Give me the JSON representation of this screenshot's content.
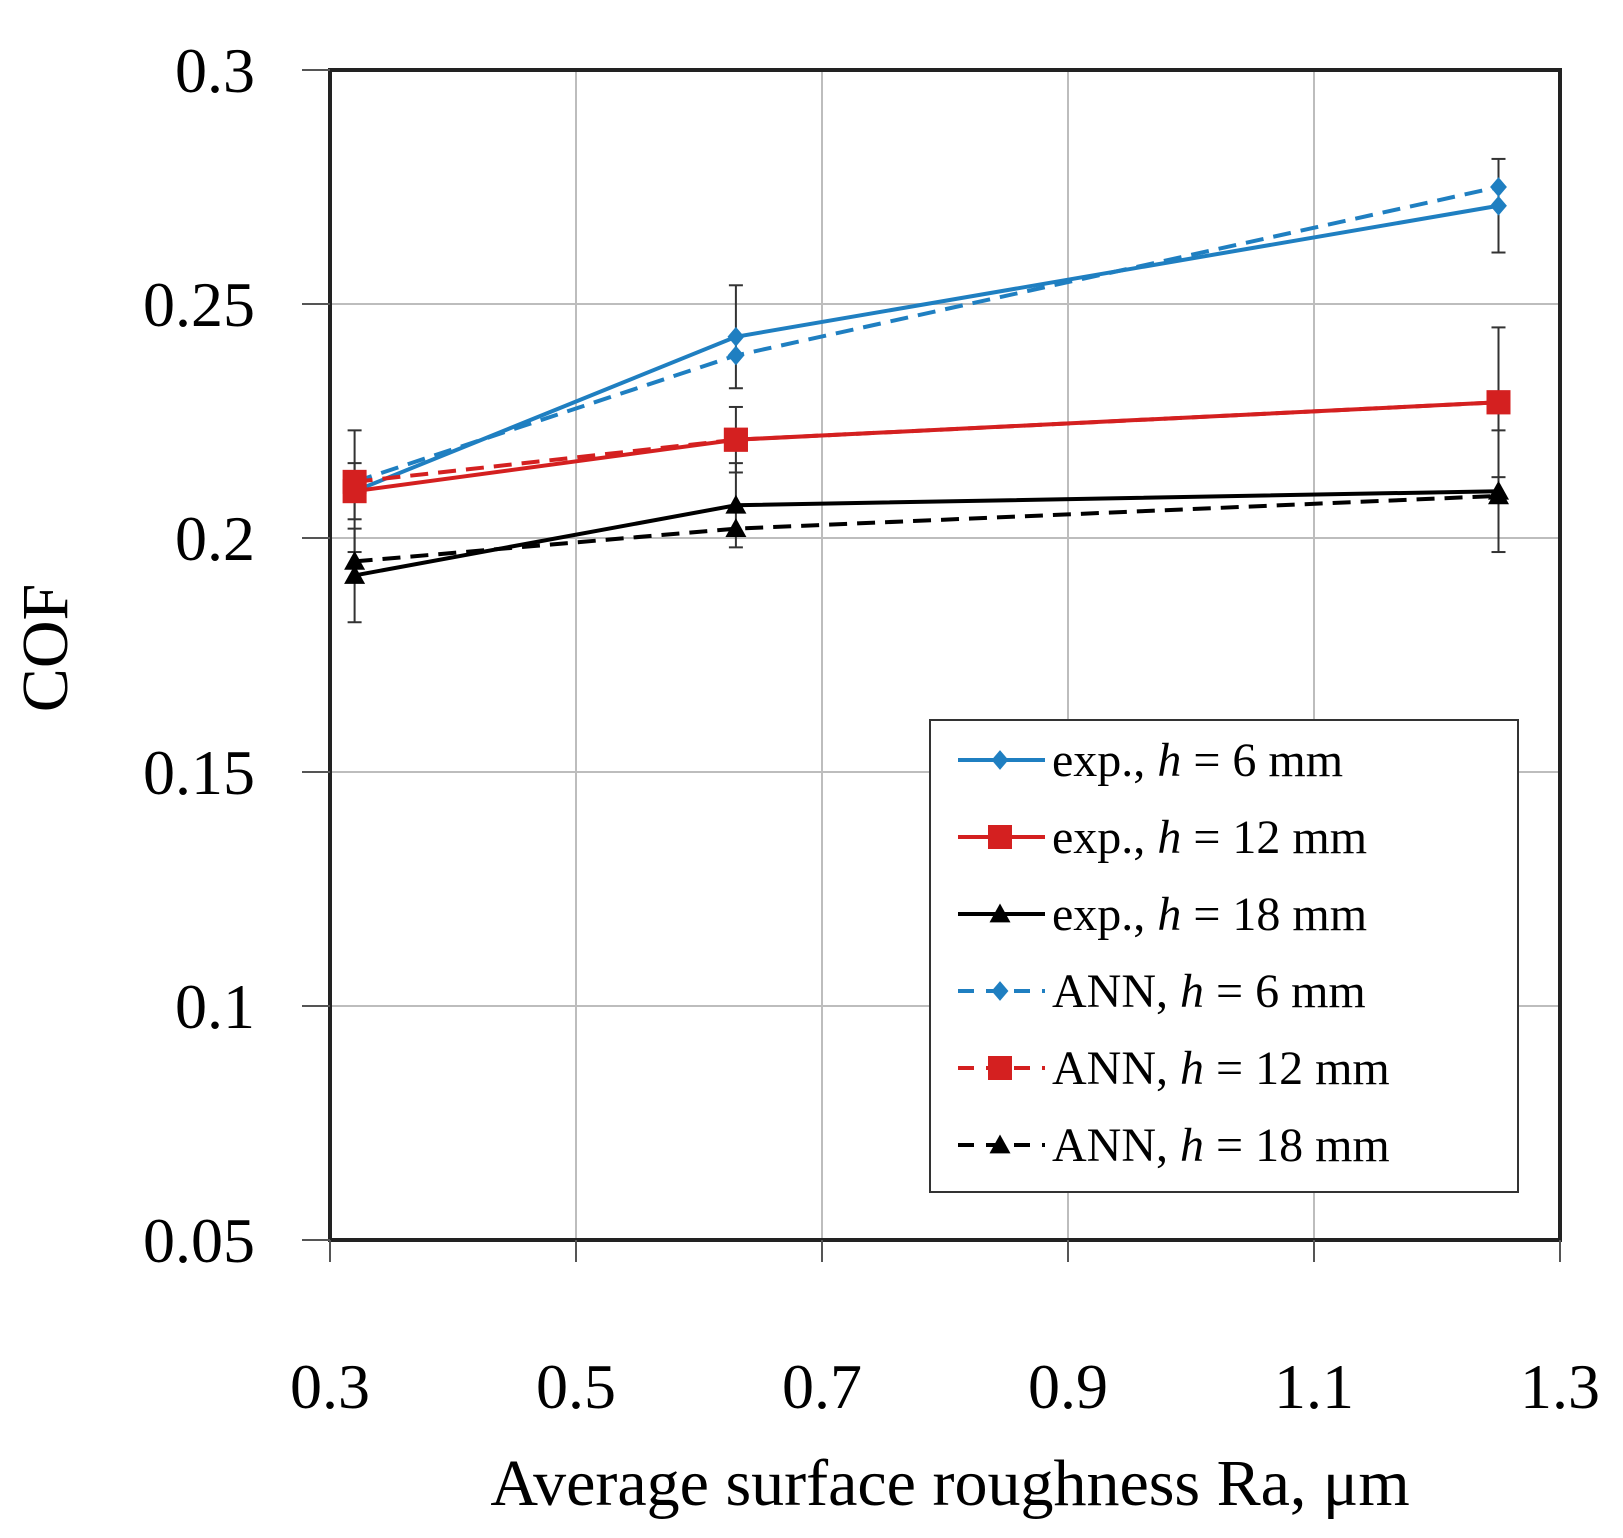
{
  "chart_data": {
    "type": "line",
    "title": "",
    "xlabel": "Average surface roughness Ra, μm",
    "ylabel": "COF",
    "xlim": [
      0.3,
      1.3
    ],
    "ylim": [
      0.05,
      0.3
    ],
    "xticks": [
      0.3,
      0.5,
      0.7,
      0.9,
      1.1,
      1.3
    ],
    "xtick_labels": [
      "0.3",
      "0.5",
      "0.7",
      "0.9",
      "1.1",
      "1.3"
    ],
    "yticks": [
      0.05,
      0.1,
      0.15,
      0.2,
      0.25,
      0.3
    ],
    "ytick_labels": [
      "0.05",
      "0.1",
      "0.15",
      "0.2",
      "0.25",
      "0.3"
    ],
    "grid": true,
    "legend_position": "lower-right",
    "x": [
      0.32,
      0.63,
      1.25
    ],
    "series": [
      {
        "name": "exp., h = 6 mm",
        "prefix": "exp., ",
        "mm": "6 mm",
        "values": [
          0.21,
          0.243,
          0.271
        ],
        "err": [
          0.013,
          0.011,
          0.01
        ],
        "color": "#1f7fc1",
        "dash": "solid",
        "marker": "diamond"
      },
      {
        "name": "exp., h = 12 mm",
        "prefix": "exp., ",
        "mm": "12 mm",
        "values": [
          0.21,
          0.221,
          0.229
        ],
        "err": [
          0.006,
          0.007,
          0.016
        ],
        "color": "#d42020",
        "dash": "solid",
        "marker": "square"
      },
      {
        "name": "exp., h = 18 mm",
        "prefix": "exp., ",
        "mm": "18 mm",
        "values": [
          0.192,
          0.207,
          0.21
        ],
        "err": [
          0.01,
          0.009,
          0.013
        ],
        "color": "#000000",
        "dash": "solid",
        "marker": "triangle"
      },
      {
        "name": "ANN, h = 6 mm",
        "prefix": "ANN, ",
        "mm": "6 mm",
        "values": [
          0.212,
          0.239,
          0.275
        ],
        "err": [],
        "color": "#1f7fc1",
        "dash": "dashed",
        "marker": "diamond"
      },
      {
        "name": "ANN, h = 12 mm",
        "prefix": "ANN, ",
        "mm": "12 mm",
        "values": [
          0.212,
          0.221,
          0.229
        ],
        "err": [],
        "color": "#d42020",
        "dash": "dashed",
        "marker": "square"
      },
      {
        "name": "ANN, h = 18 mm",
        "prefix": "ANN, ",
        "mm": "18 mm",
        "values": [
          0.195,
          0.202,
          0.209
        ],
        "err": [],
        "color": "#000000",
        "dash": "dashed",
        "marker": "triangle"
      }
    ]
  }
}
